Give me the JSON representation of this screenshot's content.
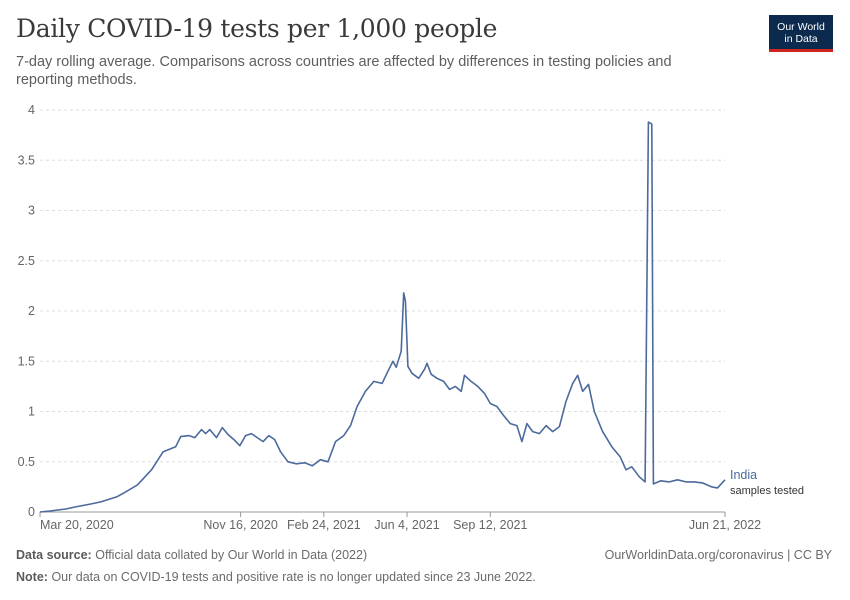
{
  "header": {
    "title": "Daily COVID-19 tests per 1,000 people",
    "subtitle": "7-day rolling average. Comparisons across countries are affected by differences in testing policies and reporting methods.",
    "logo_line1": "Our World",
    "logo_line2": "in Data"
  },
  "footer": {
    "source_label": "Data source:",
    "source_text": "Official data collated by Our World in Data (2022)",
    "note_label": "Note:",
    "note_text": "Our data on COVID-19 tests and positive rate is no longer updated since 23 June 2022.",
    "link_text": "OurWorldinData.org/coronavirus | CC BY"
  },
  "colors": {
    "series": "#4c6a9c",
    "grid": "#dddddd",
    "logo_bg": "#0c2a4e",
    "logo_accent": "#ce261e"
  },
  "chart_data": {
    "type": "line",
    "title": "Daily COVID-19 tests per 1,000 people",
    "x_type": "date",
    "x_range": [
      "2020-03-20",
      "2022-06-21"
    ],
    "y_range": [
      0,
      4
    ],
    "y_ticks": [
      "0",
      "0.5",
      "1",
      "1.5",
      "2",
      "2.5",
      "3",
      "3.5",
      "4"
    ],
    "x_ticks": [
      {
        "date": "2020-03-20",
        "label": "Mar 20, 2020"
      },
      {
        "date": "2020-11-16",
        "label": "Nov 16, 2020"
      },
      {
        "date": "2021-02-24",
        "label": "Feb 24, 2021"
      },
      {
        "date": "2021-06-04",
        "label": "Jun 4, 2021"
      },
      {
        "date": "2021-09-12",
        "label": "Sep 12, 2021"
      },
      {
        "date": "2022-06-21",
        "label": "Jun 21, 2022"
      }
    ],
    "grid": true,
    "series": [
      {
        "name": "India",
        "annotation": "samples tested",
        "points": [
          [
            "2020-03-20",
            0.0
          ],
          [
            "2020-04-01",
            0.01
          ],
          [
            "2020-04-20",
            0.03
          ],
          [
            "2020-05-01",
            0.05
          ],
          [
            "2020-05-20",
            0.08
          ],
          [
            "2020-06-01",
            0.1
          ],
          [
            "2020-06-20",
            0.15
          ],
          [
            "2020-07-01",
            0.2
          ],
          [
            "2020-07-15",
            0.27
          ],
          [
            "2020-08-01",
            0.42
          ],
          [
            "2020-08-15",
            0.6
          ],
          [
            "2020-08-30",
            0.65
          ],
          [
            "2020-09-05",
            0.75
          ],
          [
            "2020-09-15",
            0.76
          ],
          [
            "2020-09-22",
            0.74
          ],
          [
            "2020-09-30",
            0.82
          ],
          [
            "2020-10-05",
            0.78
          ],
          [
            "2020-10-10",
            0.82
          ],
          [
            "2020-10-18",
            0.74
          ],
          [
            "2020-10-25",
            0.84
          ],
          [
            "2020-11-01",
            0.77
          ],
          [
            "2020-11-08",
            0.72
          ],
          [
            "2020-11-15",
            0.66
          ],
          [
            "2020-11-22",
            0.76
          ],
          [
            "2020-11-29",
            0.78
          ],
          [
            "2020-12-06",
            0.74
          ],
          [
            "2020-12-13",
            0.7
          ],
          [
            "2020-12-20",
            0.76
          ],
          [
            "2020-12-27",
            0.72
          ],
          [
            "2021-01-03",
            0.6
          ],
          [
            "2021-01-12",
            0.5
          ],
          [
            "2021-01-22",
            0.48
          ],
          [
            "2021-02-01",
            0.49
          ],
          [
            "2021-02-10",
            0.46
          ],
          [
            "2021-02-20",
            0.52
          ],
          [
            "2021-03-01",
            0.5
          ],
          [
            "2021-03-10",
            0.7
          ],
          [
            "2021-03-20",
            0.76
          ],
          [
            "2021-03-28",
            0.86
          ],
          [
            "2021-04-05",
            1.05
          ],
          [
            "2021-04-15",
            1.2
          ],
          [
            "2021-04-25",
            1.3
          ],
          [
            "2021-05-05",
            1.28
          ],
          [
            "2021-05-12",
            1.4
          ],
          [
            "2021-05-18",
            1.5
          ],
          [
            "2021-05-22",
            1.44
          ],
          [
            "2021-05-28",
            1.6
          ],
          [
            "2021-05-31",
            2.18
          ],
          [
            "2021-06-02",
            2.1
          ],
          [
            "2021-06-05",
            1.45
          ],
          [
            "2021-06-10",
            1.38
          ],
          [
            "2021-06-18",
            1.33
          ],
          [
            "2021-06-25",
            1.42
          ],
          [
            "2021-06-28",
            1.48
          ],
          [
            "2021-07-03",
            1.37
          ],
          [
            "2021-07-10",
            1.33
          ],
          [
            "2021-07-18",
            1.3
          ],
          [
            "2021-07-25",
            1.22
          ],
          [
            "2021-08-01",
            1.25
          ],
          [
            "2021-08-08",
            1.2
          ],
          [
            "2021-08-12",
            1.36
          ],
          [
            "2021-08-20",
            1.3
          ],
          [
            "2021-08-28",
            1.25
          ],
          [
            "2021-09-05",
            1.18
          ],
          [
            "2021-09-12",
            1.08
          ],
          [
            "2021-09-20",
            1.05
          ],
          [
            "2021-09-28",
            0.96
          ],
          [
            "2021-10-06",
            0.88
          ],
          [
            "2021-10-14",
            0.86
          ],
          [
            "2021-10-20",
            0.7
          ],
          [
            "2021-10-26",
            0.88
          ],
          [
            "2021-11-02",
            0.8
          ],
          [
            "2021-11-10",
            0.78
          ],
          [
            "2021-11-18",
            0.86
          ],
          [
            "2021-11-26",
            0.8
          ],
          [
            "2021-12-04",
            0.85
          ],
          [
            "2021-12-12",
            1.1
          ],
          [
            "2021-12-20",
            1.28
          ],
          [
            "2021-12-26",
            1.36
          ],
          [
            "2022-01-01",
            1.2
          ],
          [
            "2022-01-08",
            1.27
          ],
          [
            "2022-01-15",
            1.0
          ],
          [
            "2022-01-25",
            0.8
          ],
          [
            "2022-02-05",
            0.65
          ],
          [
            "2022-02-15",
            0.55
          ],
          [
            "2022-02-22",
            0.42
          ],
          [
            "2022-03-01",
            0.45
          ],
          [
            "2022-03-10",
            0.35
          ],
          [
            "2022-03-17",
            0.3
          ],
          [
            "2022-03-21",
            3.88
          ],
          [
            "2022-03-25",
            3.86
          ],
          [
            "2022-03-27",
            0.28
          ],
          [
            "2022-04-05",
            0.31
          ],
          [
            "2022-04-15",
            0.3
          ],
          [
            "2022-04-25",
            0.32
          ],
          [
            "2022-05-05",
            0.3
          ],
          [
            "2022-05-15",
            0.3
          ],
          [
            "2022-05-25",
            0.29
          ],
          [
            "2022-06-05",
            0.25
          ],
          [
            "2022-06-12",
            0.24
          ],
          [
            "2022-06-21",
            0.32
          ]
        ]
      }
    ]
  }
}
